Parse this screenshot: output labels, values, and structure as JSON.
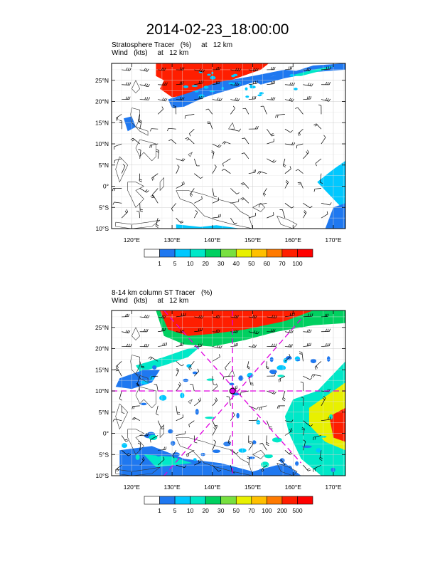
{
  "page": {
    "title": "2014-02-23_18:00:00"
  },
  "panels": [
    {
      "subtitle1": "Stratosphere Tracer   (%)     at   12 km",
      "subtitle2": "Wind   (kts)     at   12 km",
      "lat_ticks": [
        "25°N",
        "20°N",
        "15°N",
        "10°N",
        "5°N",
        "0°",
        "5°S",
        "10°S"
      ],
      "lon_ticks": [
        "120°E",
        "130°E",
        "140°E",
        "150°E",
        "160°E",
        "170°E"
      ],
      "colorbar_labels": [
        "1",
        "5",
        "10",
        "20",
        "30",
        "40",
        "50",
        "60",
        "70",
        "100"
      ]
    },
    {
      "subtitle1": "8-14 km column ST Tracer   (%)",
      "subtitle2": "Wind   (kts)     at   12 km",
      "lat_ticks": [
        "25°N",
        "20°N",
        "15°N",
        "10°N",
        "5°N",
        "0°",
        "5°S",
        "10°S"
      ],
      "lon_ticks": [
        "120°E",
        "130°E",
        "140°E",
        "150°E",
        "160°E",
        "170°E"
      ],
      "colorbar_labels": [
        "1",
        "5",
        "10",
        "20",
        "30",
        "50",
        "70",
        "100",
        "200",
        "500"
      ]
    }
  ],
  "colors": {
    "levels": [
      "#ffffff",
      "#1f78f0",
      "#00c8ff",
      "#00e8c8",
      "#00d060",
      "#78e040",
      "#e8f000",
      "#ffc000",
      "#ff7a00",
      "#ff1e00",
      "#ff0000"
    ],
    "marker": "#e000e0"
  },
  "chart_data": [
    {
      "type": "heatmap",
      "title": "Stratosphere Tracer (%) at 12 km",
      "x_range": [
        115,
        173
      ],
      "y_range": [
        -10,
        29
      ],
      "x_ticks": [
        120,
        130,
        140,
        150,
        160,
        170
      ],
      "y_ticks": [
        25,
        20,
        15,
        10,
        5,
        0,
        -5,
        -10
      ],
      "levels": [
        1,
        5,
        10,
        20,
        30,
        40,
        50,
        60,
        70,
        100
      ]
    },
    {
      "type": "heatmap",
      "title": "8-14 km column ST Tracer (%)",
      "x_range": [
        115,
        173
      ],
      "y_range": [
        -10,
        29
      ],
      "x_ticks": [
        120,
        130,
        140,
        150,
        160,
        170
      ],
      "y_ticks": [
        25,
        20,
        15,
        10,
        5,
        0,
        -5,
        -10
      ],
      "levels": [
        1,
        5,
        10,
        20,
        30,
        50,
        70,
        100,
        200,
        500
      ],
      "marker": {
        "lon": 145,
        "lat": 10
      }
    }
  ]
}
